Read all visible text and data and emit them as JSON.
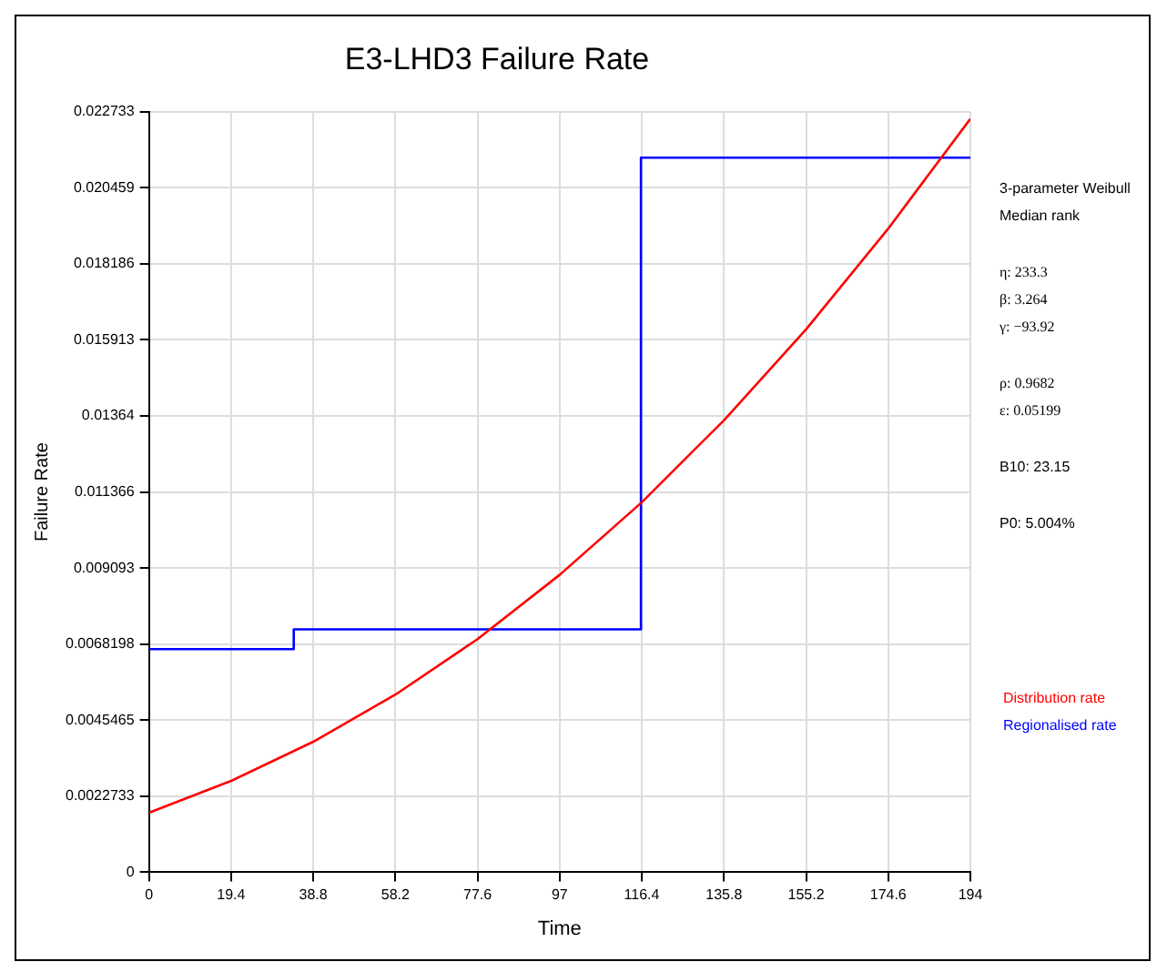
{
  "chart_data": {
    "type": "line",
    "title": "E3-LHD3 Failure Rate",
    "xlabel": "Time",
    "ylabel": "Failure Rate",
    "xlim": [
      0,
      194
    ],
    "xticks": [
      0,
      19.4,
      38.8,
      58.2,
      77.6,
      97,
      116.4,
      135.8,
      155.2,
      174.6,
      194
    ],
    "ylim": [
      0,
      0.022733
    ],
    "yticks": [
      0,
      0.0022733,
      0.0045465,
      0.0068198,
      0.009093,
      0.011366,
      0.01364,
      0.015913,
      0.018186,
      0.020459,
      0.022733
    ],
    "grid": true,
    "legend": "right",
    "series": [
      {
        "name": "Distribution rate",
        "type": "line",
        "color": "#ff0000",
        "x": [
          0,
          19.4,
          38.8,
          58.2,
          77.6,
          97,
          116.4,
          135.8,
          155.2,
          174.6,
          194
        ],
        "values": [
          0.00178,
          0.00273,
          0.0039,
          0.00531,
          0.00697,
          0.00889,
          0.01106,
          0.01351,
          0.01623,
          0.01924,
          0.02252
        ]
      },
      {
        "name": "Regionalised rate",
        "type": "step",
        "color": "#0000ff",
        "x": [
          0,
          34.2,
          116.2,
          194
        ],
        "values": [
          0.00667,
          0.00726,
          0.02136,
          0.02136
        ]
      }
    ],
    "annotations": [
      "3-parameter Weibull",
      "Median rank",
      "η: 233.3",
      "β: 3.264",
      "γ: −93.92",
      "ρ: 0.9682",
      "ε: 0.05199",
      "B10: 23.15",
      "P0: 5.004%"
    ]
  }
}
